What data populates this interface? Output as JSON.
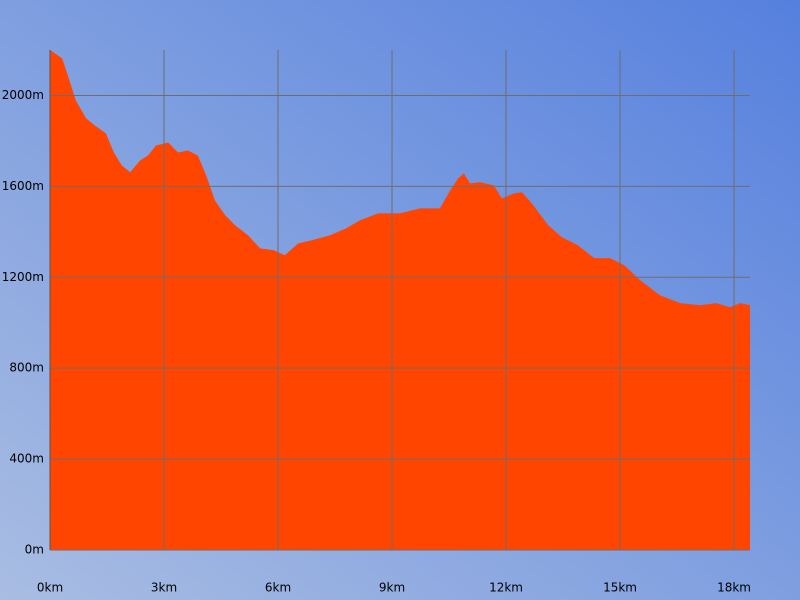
{
  "chart_data": {
    "type": "area",
    "x": [
      0,
      0.32,
      0.47,
      0.68,
      0.95,
      1.18,
      1.47,
      1.68,
      1.89,
      2.11,
      2.37,
      2.58,
      2.79,
      3.11,
      3.37,
      3.63,
      3.89,
      4.11,
      4.34,
      4.61,
      4.87,
      5.21,
      5.53,
      5.89,
      6.18,
      6.53,
      6.89,
      7.37,
      7.79,
      8.16,
      8.63,
      9.21,
      9.74,
      10.26,
      10.53,
      10.74,
      10.89,
      11.05,
      11.32,
      11.68,
      11.89,
      12.21,
      12.42,
      12.68,
      13.11,
      13.47,
      13.89,
      14.32,
      14.74,
      15.11,
      15.53,
      16.05,
      16.58,
      17.11,
      17.53,
      17.89,
      18.16,
      18.42
    ],
    "values": [
      2200,
      2163,
      2088,
      1978,
      1899,
      1868,
      1833,
      1749,
      1692,
      1662,
      1714,
      1736,
      1780,
      1793,
      1749,
      1758,
      1736,
      1648,
      1538,
      1473,
      1429,
      1385,
      1327,
      1319,
      1297,
      1349,
      1363,
      1385,
      1415,
      1451,
      1481,
      1481,
      1503,
      1503,
      1582,
      1635,
      1657,
      1613,
      1618,
      1604,
      1547,
      1569,
      1574,
      1525,
      1429,
      1376,
      1341,
      1284,
      1284,
      1253,
      1187,
      1121,
      1086,
      1077,
      1086,
      1068,
      1086,
      1077
    ],
    "color": "#ff4500",
    "xlim": [
      0,
      18.42
    ],
    "ylim": [
      0,
      2200
    ],
    "xticks": [
      {
        "value": 0,
        "label": "0km"
      },
      {
        "value": 3,
        "label": "3km"
      },
      {
        "value": 6,
        "label": "6km"
      },
      {
        "value": 9,
        "label": "9km"
      },
      {
        "value": 12,
        "label": "12km"
      },
      {
        "value": 15,
        "label": "15km"
      },
      {
        "value": 18,
        "label": "18km"
      }
    ],
    "yticks": [
      {
        "value": 0,
        "label": "0m"
      },
      {
        "value": 400,
        "label": "400m"
      },
      {
        "value": 800,
        "label": "800m"
      },
      {
        "value": 1200,
        "label": "1200m"
      },
      {
        "value": 1600,
        "label": "1600m"
      },
      {
        "value": 2000,
        "label": "2000m"
      }
    ],
    "grid": true
  }
}
